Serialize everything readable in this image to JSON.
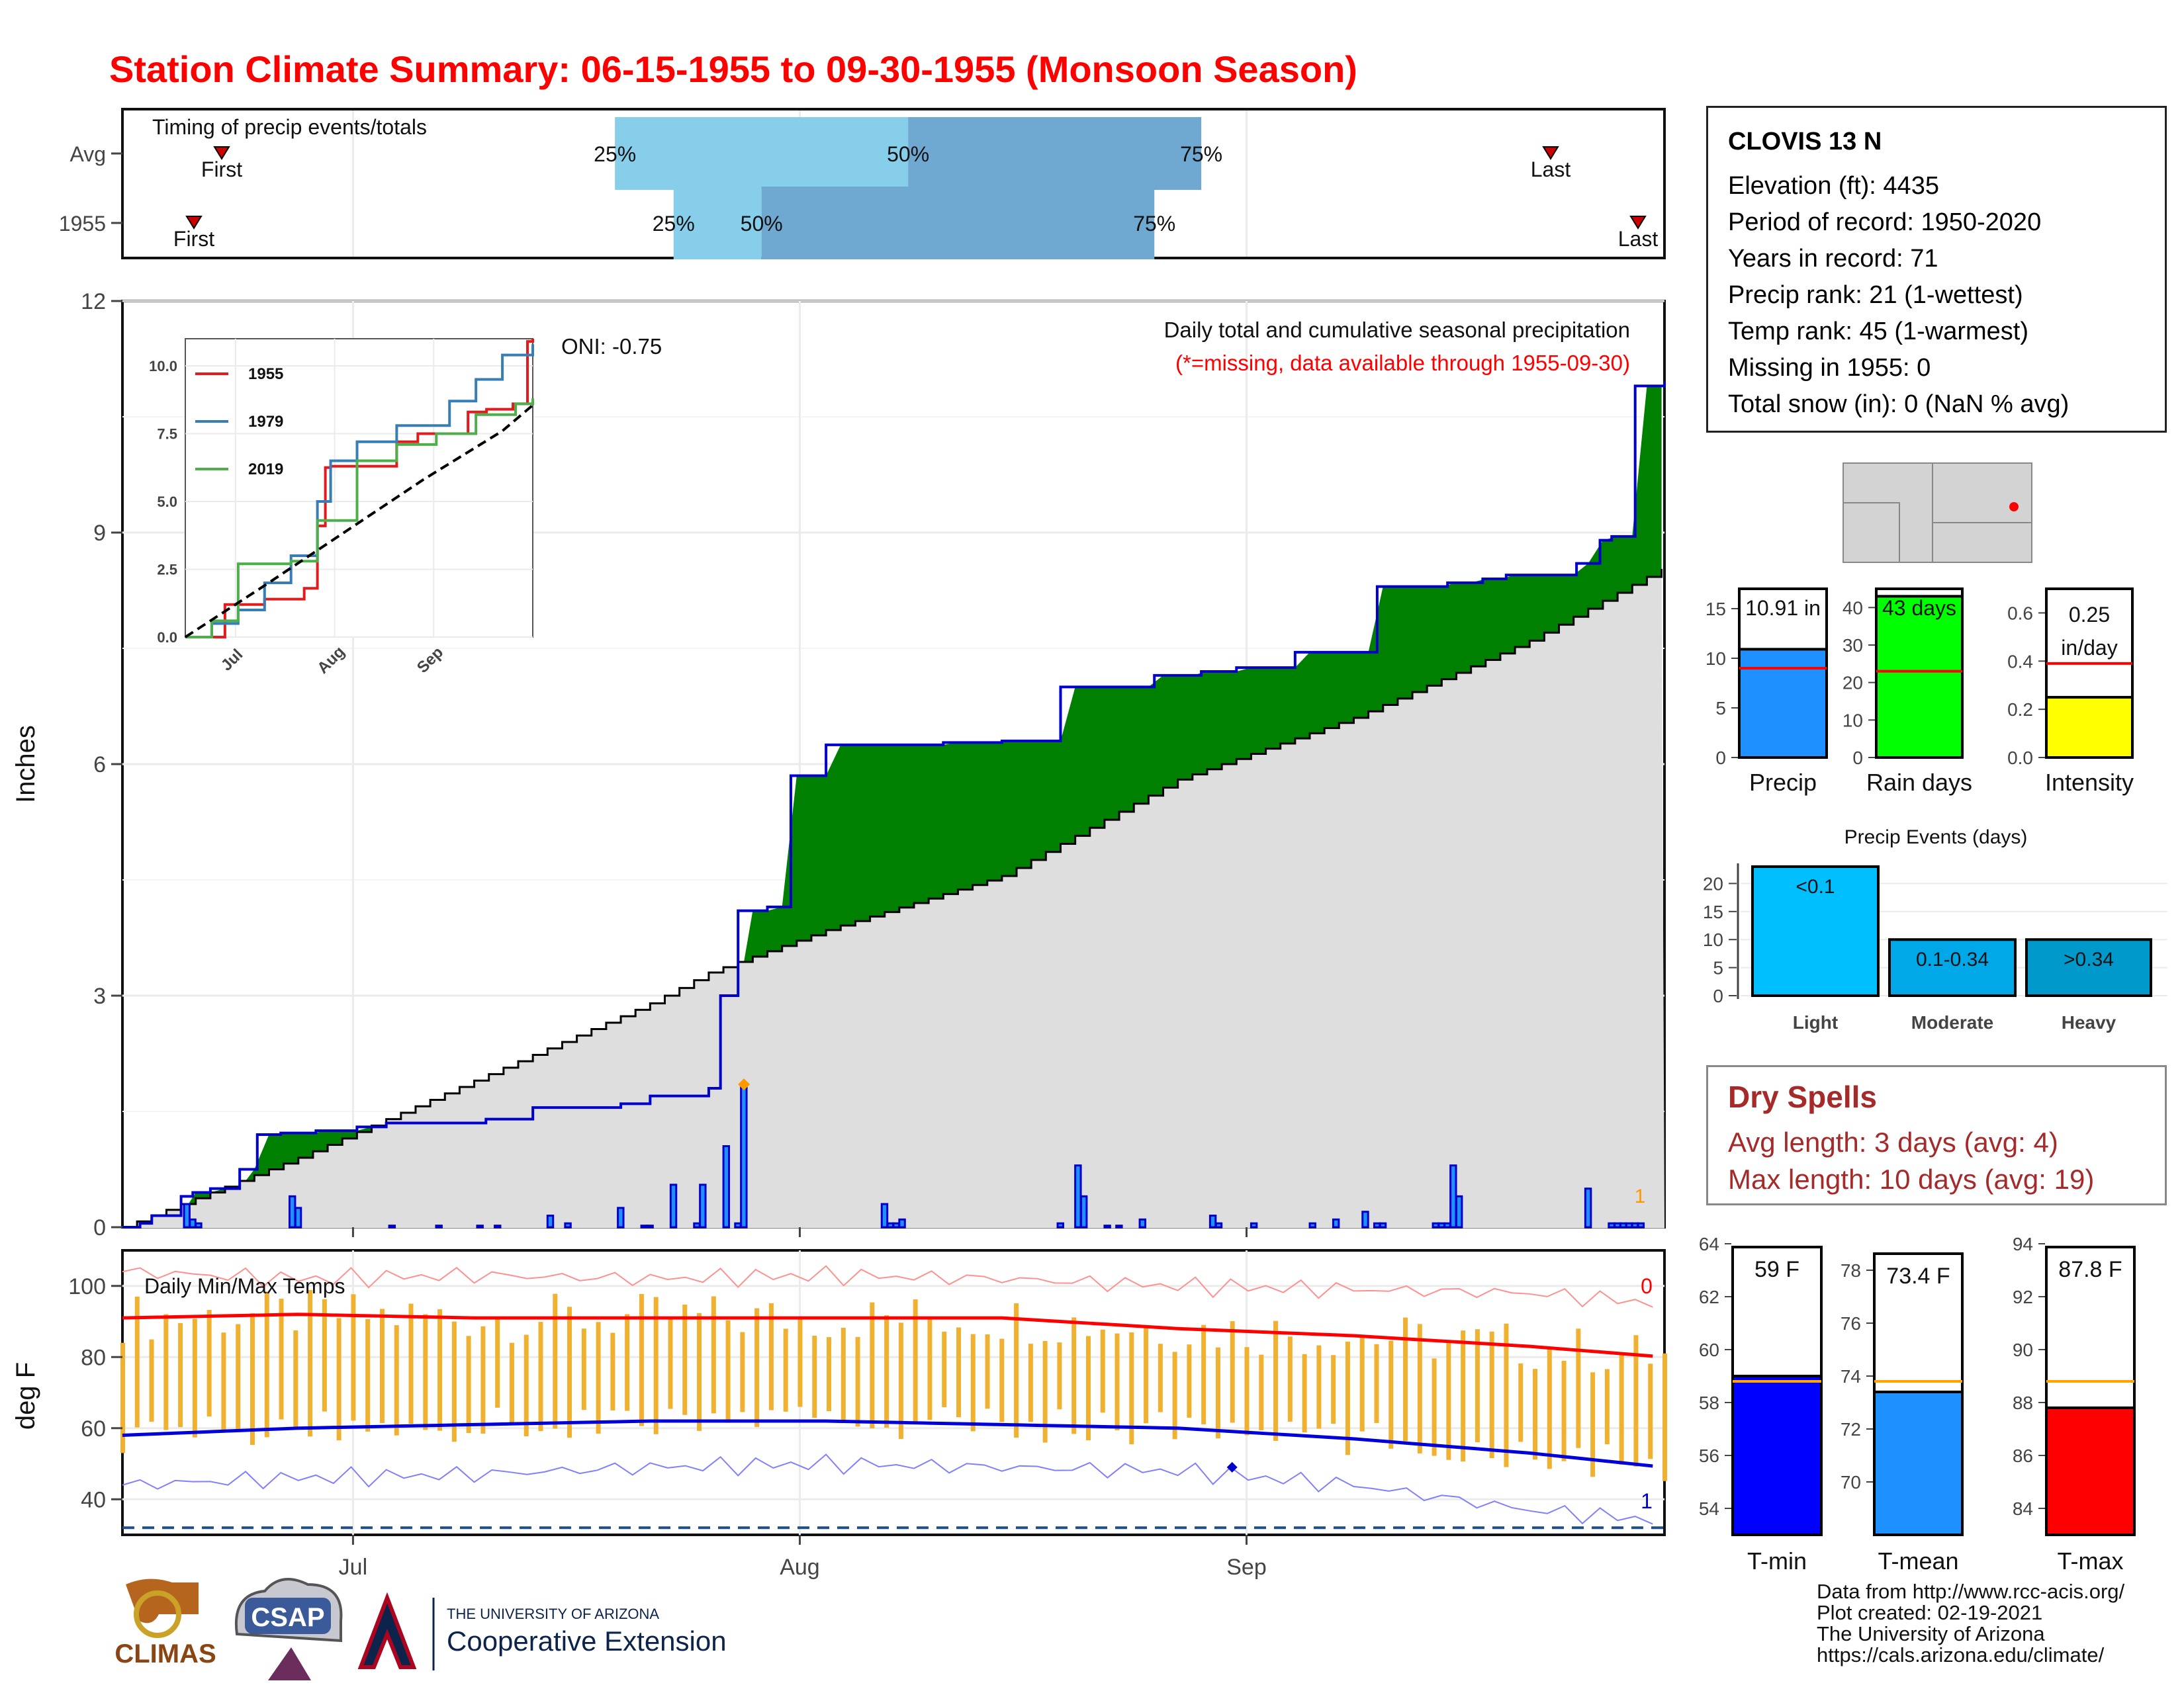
{
  "title": "Station Climate Summary: 06-15-1955 to 09-30-1955 (Monsoon Season)",
  "station": {
    "name": "CLOVIS 13 N",
    "lines": [
      "Elevation (ft): 4435",
      "Period of record: 1950-2020",
      "Years in record: 71",
      "Precip rank: 21 (1-wettest)",
      "Temp rank: 45 (1-warmest)",
      "Missing in 1955: 0",
      "Total snow (in): 0 (NaN % avg)"
    ]
  },
  "timing": {
    "label": "Timing of precip events/totals",
    "rows": [
      {
        "label": "Avg",
        "first_day": 5,
        "p25": 84,
        "p50": 134,
        "p75": 184,
        "last_day": 248,
        "first": "First",
        "last": "Last",
        "t25": "25%",
        "t50": "50%",
        "t75": "75%"
      },
      {
        "label": "1955",
        "first_day": 0,
        "p25": 94,
        "p50": 109,
        "p75": 176,
        "last_day": 263,
        "first": "First",
        "last": "Last",
        "t25": "25%",
        "t50": "50%",
        "t75": "75%"
      }
    ]
  },
  "main": {
    "ylabel": "Inches",
    "yticks": [
      "0",
      "3",
      "6",
      "9",
      "12"
    ],
    "xticks": [
      "Jul",
      "Aug",
      "Sep"
    ],
    "oni": "ONI: -0.75",
    "note1": "Daily total and cumulative seasonal precipitation",
    "note2": "(*=missing, data available through 1955-09-30)",
    "marker": "1"
  },
  "inset": {
    "yticks": [
      "0.0",
      "2.5",
      "5.0",
      "7.5",
      "10.0"
    ],
    "xticks": [
      "Jul",
      "Aug",
      "Sep"
    ],
    "legend": [
      "1955",
      "1979",
      "2019"
    ]
  },
  "temps": {
    "label": "Daily Min/Max Temps",
    "ylabel": "deg F",
    "yticks": [
      "40",
      "60",
      "80",
      "100"
    ],
    "count_hi": "0",
    "count_lo": "1"
  },
  "bars": {
    "precip": {
      "value_text": "10.91 in",
      "label": "Precip",
      "yticks": [
        "0",
        "5",
        "10",
        "15"
      ]
    },
    "raindays": {
      "value_text": "43 days",
      "label": "Rain days",
      "yticks": [
        "0",
        "10",
        "20",
        "30",
        "40"
      ]
    },
    "intensity": {
      "value_text1": "0.25",
      "value_text2": "in/day",
      "label": "Intensity",
      "yticks": [
        "0.0",
        "0.2",
        "0.4",
        "0.6"
      ]
    }
  },
  "events": {
    "title": "Precip Events (days)",
    "yticks": [
      "0",
      "5",
      "10",
      "15",
      "20"
    ],
    "items": [
      {
        "cat": "Light",
        "text": "<0.1"
      },
      {
        "cat": "Moderate",
        "text": "0.1-0.34"
      },
      {
        "cat": "Heavy",
        "text": ">0.34"
      }
    ]
  },
  "dry": {
    "title": "Dry Spells",
    "avg": "Avg length: 3 days (avg: 4)",
    "max": "Max length: 10 days (avg: 19)"
  },
  "tbars": {
    "tmin": {
      "text": "59 F",
      "label": "T-min",
      "yticks": [
        "54",
        "56",
        "58",
        "60",
        "62",
        "64"
      ]
    },
    "tmean": {
      "text": "73.4 F",
      "label": "T-mean",
      "yticks": [
        "70",
        "72",
        "74",
        "76",
        "78"
      ]
    },
    "tmax": {
      "text": "87.8 F",
      "label": "T-max",
      "yticks": [
        "84",
        "86",
        "88",
        "90",
        "92",
        "94"
      ]
    }
  },
  "credits": [
    "Data from http://www.rcc-acis.org/",
    "Plot created: 02-19-2021",
    "The University of Arizona",
    "https://cals.arizona.edu/climate/"
  ],
  "logos": {
    "climas": "CLIMAS",
    "csap": "CSAP",
    "ua_line1": "THE UNIVERSITY OF ARIZONA",
    "ua_line2": "Cooperative Extension"
  },
  "chart_data": [
    {
      "type": "area",
      "name": "cumulative_precip",
      "days_from": "1955-06-15",
      "ylim": [
        0,
        12
      ],
      "series": [
        {
          "name": "1955",
          "x": [
            0,
            3,
            5,
            10,
            12,
            15,
            20,
            23,
            27,
            30,
            33,
            37,
            40,
            45,
            50,
            55,
            60,
            62,
            66,
            70,
            75,
            82,
            85,
            90,
            100,
            102,
            105,
            110,
            114,
            120,
            128,
            140,
            150,
            155,
            160,
            176,
            184,
            190,
            200,
            214,
            220,
            226,
            232,
            236,
            248,
            252,
            254,
            258,
            263
          ],
          "y": [
            0,
            0.05,
            0.15,
            0.4,
            0.45,
            0.5,
            0.75,
            1.2,
            1.22,
            1.22,
            1.25,
            1.25,
            1.3,
            1.35,
            1.35,
            1.35,
            1.35,
            1.4,
            1.4,
            1.55,
            1.55,
            1.55,
            1.6,
            1.7,
            1.8,
            3.0,
            4.1,
            4.15,
            5.85,
            6.25,
            6.25,
            6.28,
            6.3,
            6.3,
            7.0,
            7.15,
            7.2,
            7.25,
            7.45,
            8.3,
            8.3,
            8.35,
            8.4,
            8.45,
            8.6,
            8.9,
            8.95,
            10.9,
            10.95
          ]
        },
        {
          "name": "Average",
          "x": [
            0,
            30,
            60,
            90,
            100,
            120,
            150,
            180,
            210,
            240,
            263
          ],
          "y": [
            0,
            0.9,
            1.9,
            2.9,
            3.3,
            3.85,
            4.55,
            5.8,
            6.6,
            7.6,
            8.55
          ]
        }
      ]
    },
    {
      "type": "bar",
      "name": "daily_precip",
      "x": [
        11,
        12,
        13,
        29,
        30,
        46,
        54,
        61,
        64,
        73,
        76,
        85,
        89,
        90,
        94,
        98,
        99,
        103,
        105,
        106,
        130,
        131,
        132,
        133,
        160,
        163,
        164,
        168,
        170,
        174,
        186,
        187,
        193,
        203,
        207,
        212,
        214,
        215,
        224,
        225,
        226,
        227,
        228,
        250,
        254,
        255,
        256,
        257,
        258,
        259
      ],
      "values": [
        0.3,
        0.1,
        0.05,
        0.4,
        0.25,
        0.02,
        0.02,
        0.02,
        0.02,
        0.15,
        0.05,
        0.25,
        0.02,
        0.02,
        0.55,
        0.05,
        0.55,
        1.05,
        0.05,
        1.85,
        0.3,
        0.05,
        0.05,
        0.1,
        0.05,
        0.8,
        0.4,
        0.02,
        0.02,
        0.1,
        0.15,
        0.05,
        0.05,
        0.05,
        0.1,
        0.2,
        0.05,
        0.05,
        0.05,
        0.05,
        0.05,
        0.8,
        0.4,
        0.5,
        0.05,
        0.05,
        0.05,
        0.05,
        0.05,
        0.05
      ]
    },
    {
      "type": "line",
      "name": "inset_cumulative",
      "ylim": [
        0,
        11
      ],
      "series": [
        {
          "name": "1955",
          "x": [
            0,
            30,
            60,
            90,
            100,
            106,
            110,
            135,
            160,
            176,
            214,
            228,
            248,
            259,
            263
          ],
          "y": [
            0,
            1.2,
            1.4,
            1.8,
            4.1,
            6.25,
            6.3,
            6.3,
            7.2,
            7.5,
            8.3,
            8.4,
            8.6,
            10.9,
            11.0
          ]
        },
        {
          "name": "1979",
          "x": [
            0,
            20,
            40,
            60,
            80,
            100,
            110,
            130,
            160,
            200,
            220,
            240,
            263
          ],
          "y": [
            0,
            0.5,
            1.0,
            2.0,
            3.0,
            5.0,
            6.5,
            7.2,
            7.8,
            8.7,
            9.5,
            10.4,
            10.8
          ]
        },
        {
          "name": "2019",
          "x": [
            0,
            20,
            40,
            60,
            80,
            100,
            130,
            160,
            190,
            220,
            250,
            263
          ],
          "y": [
            0,
            0.6,
            2.7,
            2.7,
            2.8,
            4.3,
            6.5,
            7.1,
            7.5,
            8.2,
            8.6,
            8.8
          ]
        },
        {
          "name": "Average",
          "x": [
            0,
            60,
            120,
            180,
            240,
            263
          ],
          "y": [
            0,
            1.9,
            3.85,
            5.8,
            7.6,
            8.55
          ]
        }
      ]
    },
    {
      "type": "line",
      "name": "daily_temps",
      "ylim": [
        30,
        110
      ],
      "series": [
        {
          "name": "avg_max",
          "x": [
            0,
            30,
            60,
            90,
            120,
            150,
            180,
            210,
            240,
            263
          ],
          "y": [
            91,
            92,
            91,
            91,
            91,
            91,
            88,
            86,
            83,
            80
          ]
        },
        {
          "name": "avg_min",
          "x": [
            0,
            30,
            60,
            90,
            120,
            150,
            180,
            210,
            240,
            263
          ],
          "y": [
            58,
            60,
            61,
            62,
            62,
            61,
            60,
            57,
            53,
            49
          ]
        },
        {
          "name": "record_max",
          "x": [
            0,
            30,
            60,
            90,
            120,
            150,
            180,
            210,
            240,
            263
          ],
          "y": [
            104,
            102,
            103,
            102,
            103,
            102,
            100,
            99,
            98,
            95
          ]
        },
        {
          "name": "record_min",
          "x": [
            0,
            30,
            60,
            90,
            120,
            150,
            180,
            210,
            240,
            263
          ],
          "y": [
            44,
            46,
            47,
            49,
            50,
            49,
            48,
            44,
            37,
            34
          ]
        }
      ]
    },
    {
      "type": "bar",
      "name": "season_summary",
      "categories": [
        "Precip",
        "Rain days",
        "Intensity"
      ],
      "values": [
        10.91,
        43,
        0.25
      ],
      "averages": [
        9.0,
        23,
        0.39
      ],
      "ylims": [
        [
          0,
          17
        ],
        [
          0,
          45
        ],
        [
          0,
          0.7
        ]
      ]
    },
    {
      "type": "bar",
      "name": "precip_events",
      "categories": [
        "Light",
        "Moderate",
        "Heavy"
      ],
      "values": [
        23,
        10,
        10
      ],
      "ylim": [
        0,
        23
      ]
    },
    {
      "type": "bar",
      "name": "temperature_summary",
      "categories": [
        "T-min",
        "T-mean",
        "T-max"
      ],
      "values": [
        59,
        73.4,
        87.8
      ],
      "averages": [
        58.8,
        73.8,
        88.8
      ]
    }
  ]
}
